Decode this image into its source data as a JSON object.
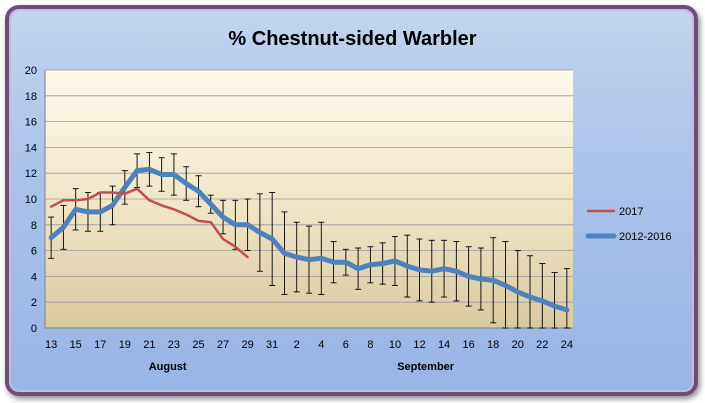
{
  "chart_data": {
    "type": "line",
    "title": "% Chestnut-sided Warbler",
    "xlabel": "",
    "ylabel": "",
    "ylim": [
      0,
      20
    ],
    "y_ticks": [
      "0",
      "2",
      "4",
      "6",
      "8",
      "10",
      "12",
      "14",
      "16",
      "18",
      "20"
    ],
    "categories": [
      "13",
      "14",
      "15",
      "16",
      "17",
      "18",
      "19",
      "20",
      "21",
      "22",
      "23",
      "24",
      "25",
      "26",
      "27",
      "28",
      "29",
      "30",
      "31",
      "1",
      "2",
      "3",
      "4",
      "5",
      "6",
      "7",
      "8",
      "9",
      "10",
      "11",
      "12",
      "13",
      "14",
      "15",
      "16",
      "17",
      "18",
      "19",
      "20",
      "21",
      "22",
      "23",
      "24"
    ],
    "tick_labels": [
      "13",
      "15",
      "17",
      "19",
      "21",
      "23",
      "25",
      "27",
      "29",
      "31",
      "2",
      "4",
      "6",
      "8",
      "10",
      "12",
      "14",
      "16",
      "18",
      "20",
      "22",
      "24"
    ],
    "month_labels": [
      "August",
      "September"
    ],
    "grid": true,
    "legend_position": "right",
    "series": [
      {
        "name": "2017",
        "color": "#c0504d",
        "values": [
          9.4,
          9.9,
          9.9,
          10.0,
          10.5,
          10.5,
          10.4,
          10.8,
          9.9,
          9.5,
          9.2,
          8.8,
          8.3,
          8.2,
          6.9,
          6.3,
          5.5,
          null,
          null,
          null,
          null,
          null,
          null,
          null,
          null,
          null,
          null,
          null,
          null,
          null,
          null,
          null,
          null,
          null,
          null,
          null,
          null,
          null,
          null,
          null,
          null,
          null,
          null
        ]
      },
      {
        "name": "2012-2016",
        "color": "#4f81bd",
        "values": [
          7.0,
          7.8,
          9.2,
          9.0,
          9.0,
          9.5,
          10.9,
          12.2,
          12.3,
          11.9,
          11.9,
          11.2,
          10.6,
          9.6,
          8.6,
          8.0,
          8.0,
          7.4,
          6.9,
          5.8,
          5.5,
          5.3,
          5.4,
          5.1,
          5.1,
          4.6,
          4.9,
          5.0,
          5.2,
          4.8,
          4.5,
          4.4,
          4.6,
          4.4,
          4.0,
          3.8,
          3.7,
          3.3,
          2.8,
          2.4,
          2.1,
          1.7,
          1.4
        ],
        "error": [
          1.6,
          1.7,
          1.6,
          1.5,
          1.5,
          1.5,
          1.3,
          1.3,
          1.3,
          1.3,
          1.6,
          1.3,
          1.2,
          0.7,
          1.3,
          1.9,
          2.0,
          3.0,
          3.6,
          3.2,
          2.7,
          2.6,
          2.8,
          1.6,
          1.0,
          1.6,
          1.4,
          1.6,
          1.9,
          2.4,
          2.4,
          2.4,
          2.2,
          2.3,
          2.3,
          2.4,
          3.3,
          3.4,
          3.2,
          3.2,
          2.9,
          2.6,
          3.2
        ]
      }
    ]
  }
}
